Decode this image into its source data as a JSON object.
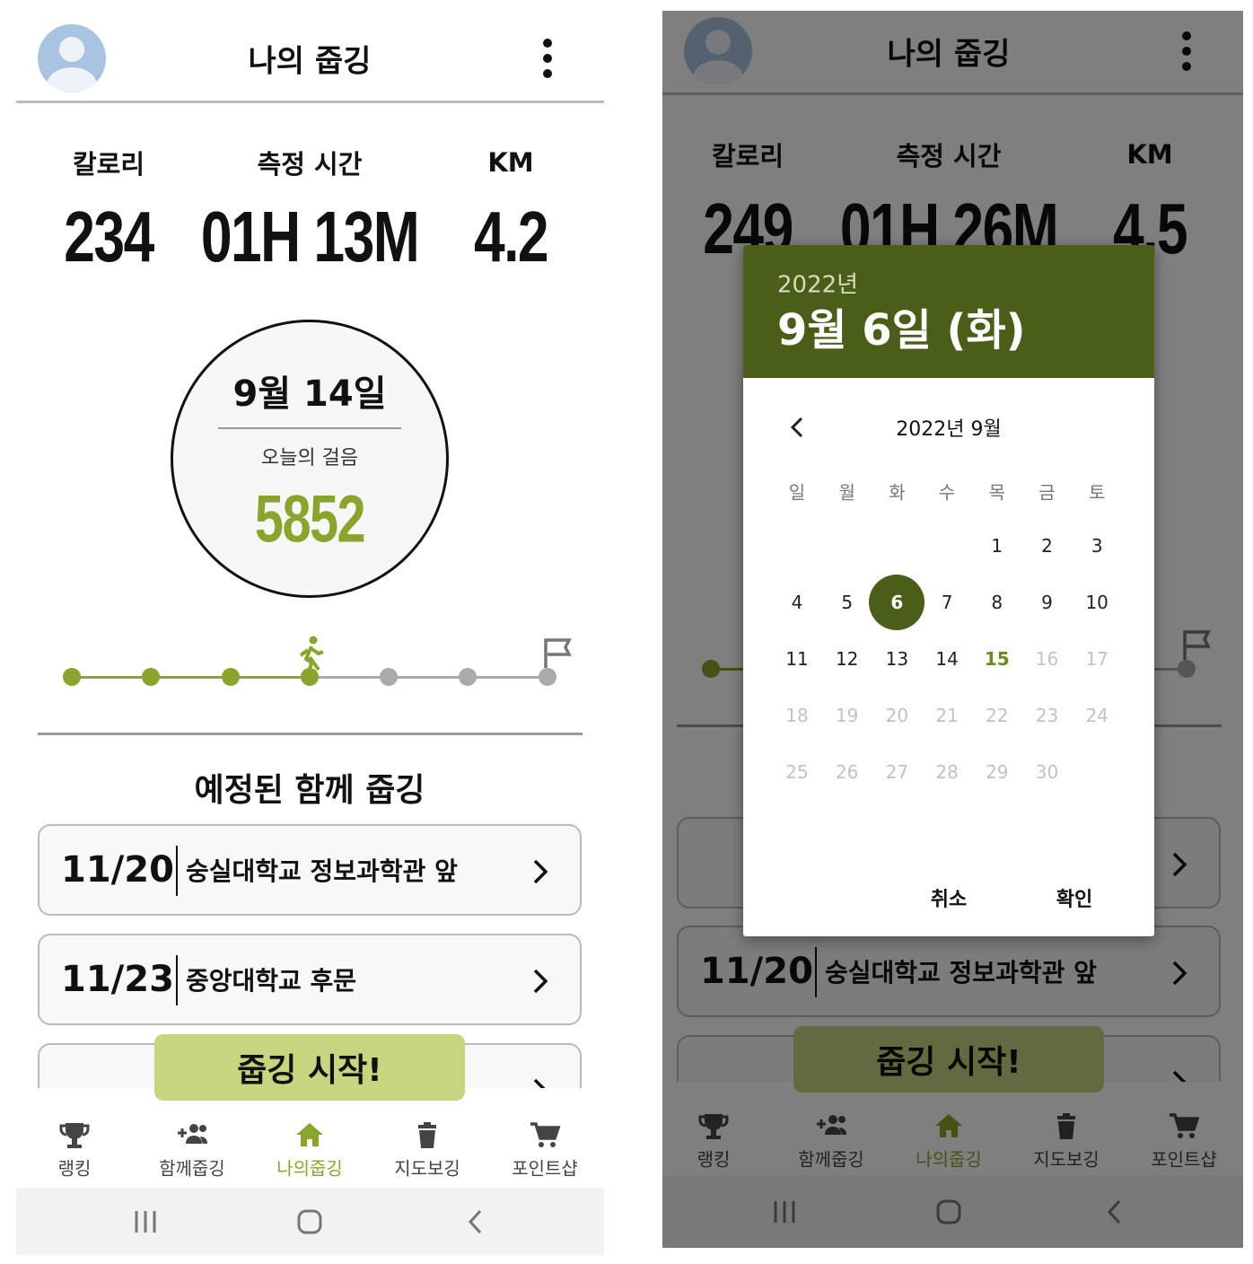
{
  "left": {
    "header": {
      "title": "나의 줍깅"
    },
    "stats": [
      {
        "label": "칼로리",
        "value": "234"
      },
      {
        "label": "측정 시간",
        "value": "01H 13M"
      },
      {
        "label": "KM",
        "value": "4.2"
      }
    ],
    "today": {
      "date": "9월 14일",
      "label": "오늘의 걸음",
      "steps": "5852"
    },
    "schedule_title": "예정된 함께 줍깅",
    "schedule": [
      {
        "date": "11/20",
        "place": "숭실대학교 정보과학관 앞"
      },
      {
        "date": "11/23",
        "place": "중앙대학교 후문"
      }
    ],
    "start_button": "줍깅 시작!",
    "nav": [
      "랭킹",
      "함께줍깅",
      "나의줍깅",
      "지도보깅",
      "포인트샵"
    ],
    "nav_active": 2
  },
  "right": {
    "header": {
      "title": "나의 줍깅"
    },
    "stats": [
      {
        "label": "칼로리",
        "value": "249"
      },
      {
        "label": "측정 시간",
        "value": "01H 26M"
      },
      {
        "label": "KM",
        "value": "4.5"
      }
    ],
    "schedule": [
      {
        "date": "11/20",
        "place": "숭실대학교 정보과학관 앞"
      }
    ],
    "start_button": "줍깅 시작!",
    "nav": [
      "랭킹",
      "함께줍깅",
      "나의줍깅",
      "지도보깅",
      "포인트샵"
    ],
    "nav_active": 2,
    "dialog": {
      "year": "2022년",
      "date": "9월 6일 (화)",
      "month": "2022년 9월",
      "weekdays": [
        "일",
        "월",
        "화",
        "수",
        "목",
        "금",
        "토"
      ],
      "weeks": [
        [
          null,
          null,
          null,
          null,
          1,
          2,
          3
        ],
        [
          4,
          5,
          6,
          7,
          8,
          9,
          10
        ],
        [
          11,
          12,
          13,
          14,
          15,
          16,
          17
        ],
        [
          18,
          19,
          20,
          21,
          22,
          23,
          24
        ],
        [
          25,
          26,
          27,
          28,
          29,
          30,
          null
        ]
      ],
      "selected": 6,
      "today": 15,
      "cancel": "취소",
      "confirm": "확인"
    }
  }
}
